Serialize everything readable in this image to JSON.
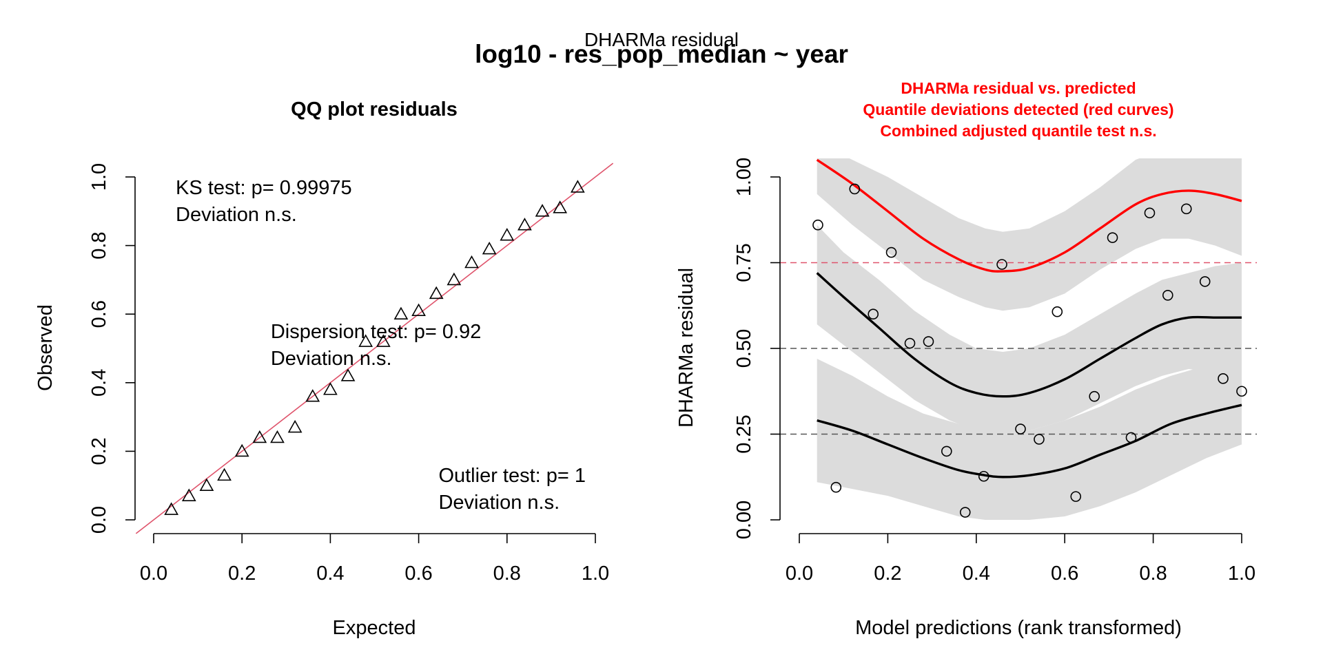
{
  "figure": {
    "supertitle_small": "DHARMa residual",
    "supertitle": "log10 - res_pop_median ~ year"
  },
  "chart_data": [
    {
      "type": "scatter",
      "title": "QQ plot residuals",
      "xlabel": "Expected",
      "ylabel": "Observed",
      "xlim": [
        0,
        1
      ],
      "ylim": [
        0,
        1
      ],
      "x_ticks": [
        "0.0",
        "0.2",
        "0.4",
        "0.6",
        "0.8",
        "1.0"
      ],
      "y_ticks": [
        "0.0",
        "0.2",
        "0.4",
        "0.6",
        "0.8",
        "1.0"
      ],
      "marker": "triangle",
      "reference_line_color": "#DF536B",
      "points": [
        {
          "x": 0.04,
          "y": 0.03
        },
        {
          "x": 0.08,
          "y": 0.07
        },
        {
          "x": 0.12,
          "y": 0.1
        },
        {
          "x": 0.16,
          "y": 0.13
        },
        {
          "x": 0.2,
          "y": 0.2
        },
        {
          "x": 0.24,
          "y": 0.24
        },
        {
          "x": 0.28,
          "y": 0.24
        },
        {
          "x": 0.32,
          "y": 0.27
        },
        {
          "x": 0.36,
          "y": 0.36
        },
        {
          "x": 0.4,
          "y": 0.38
        },
        {
          "x": 0.44,
          "y": 0.42
        },
        {
          "x": 0.48,
          "y": 0.52
        },
        {
          "x": 0.52,
          "y": 0.52
        },
        {
          "x": 0.56,
          "y": 0.6
        },
        {
          "x": 0.6,
          "y": 0.61
        },
        {
          "x": 0.64,
          "y": 0.66
        },
        {
          "x": 0.68,
          "y": 0.7
        },
        {
          "x": 0.72,
          "y": 0.75
        },
        {
          "x": 0.76,
          "y": 0.79
        },
        {
          "x": 0.8,
          "y": 0.83
        },
        {
          "x": 0.84,
          "y": 0.86
        },
        {
          "x": 0.88,
          "y": 0.9
        },
        {
          "x": 0.92,
          "y": 0.91
        },
        {
          "x": 0.96,
          "y": 0.97
        }
      ],
      "annotations": [
        {
          "lines": [
            "KS test: p= 0.99975",
            "Deviation  n.s."
          ],
          "x": 0.05,
          "y": 0.95
        },
        {
          "lines": [
            "Dispersion test: p= 0.92",
            "Deviation  n.s."
          ],
          "x": 0.265,
          "y": 0.53
        },
        {
          "lines": [
            "Outlier test: p= 1",
            "Deviation  n.s."
          ],
          "x": 0.645,
          "y": 0.11
        }
      ]
    },
    {
      "type": "scatter",
      "title_lines": [
        "DHARMa residual vs. predicted",
        "Quantile deviations detected (red curves)",
        "Combined adjusted quantile test n.s."
      ],
      "title_color": "#FF0000",
      "xlabel": "Model predictions (rank transformed)",
      "ylabel": "DHARMa residual",
      "xlim": [
        0,
        1
      ],
      "ylim": [
        0,
        1
      ],
      "x_ticks": [
        "0.0",
        "0.2",
        "0.4",
        "0.6",
        "0.8",
        "1.0"
      ],
      "y_ticks": [
        "0.00",
        "0.25",
        "0.50",
        "0.75",
        "1.00"
      ],
      "reference_lines": [
        {
          "y": 0.25,
          "color": "#555555"
        },
        {
          "y": 0.5,
          "color": "#555555"
        },
        {
          "y": 0.75,
          "color": "#DF536B"
        }
      ],
      "band_color": "#DCDCDC",
      "quantile_curves": [
        {
          "color": "#FF0000",
          "x": [
            0.04,
            0.12,
            0.2,
            0.28,
            0.36,
            0.42,
            0.46,
            0.52,
            0.6,
            0.68,
            0.76,
            0.82,
            0.88,
            0.94,
            1.0
          ],
          "y": [
            1.05,
            0.98,
            0.9,
            0.82,
            0.76,
            0.73,
            0.725,
            0.735,
            0.78,
            0.85,
            0.92,
            0.95,
            0.96,
            0.95,
            0.93
          ],
          "lower": [
            0.95,
            0.86,
            0.78,
            0.7,
            0.65,
            0.62,
            0.61,
            0.62,
            0.66,
            0.73,
            0.79,
            0.82,
            0.82,
            0.8,
            0.77
          ],
          "upper": [
            1.1,
            1.05,
            1.0,
            0.94,
            0.88,
            0.85,
            0.84,
            0.85,
            0.9,
            0.97,
            1.05,
            1.08,
            1.1,
            1.1,
            1.1
          ]
        },
        {
          "color": "#000000",
          "x": [
            0.04,
            0.1,
            0.18,
            0.26,
            0.34,
            0.4,
            0.46,
            0.52,
            0.6,
            0.68,
            0.76,
            0.82,
            0.88,
            0.94,
            1.0
          ],
          "y": [
            0.72,
            0.65,
            0.56,
            0.47,
            0.4,
            0.37,
            0.36,
            0.37,
            0.41,
            0.47,
            0.53,
            0.57,
            0.59,
            0.59,
            0.59
          ],
          "lower": [
            0.57,
            0.51,
            0.43,
            0.35,
            0.29,
            0.26,
            0.25,
            0.26,
            0.29,
            0.34,
            0.39,
            0.42,
            0.44,
            0.43,
            0.42
          ],
          "upper": [
            0.86,
            0.78,
            0.7,
            0.61,
            0.54,
            0.5,
            0.49,
            0.5,
            0.54,
            0.6,
            0.66,
            0.7,
            0.72,
            0.74,
            0.75
          ]
        },
        {
          "color": "#000000",
          "x": [
            0.04,
            0.12,
            0.2,
            0.28,
            0.36,
            0.42,
            0.46,
            0.52,
            0.6,
            0.68,
            0.76,
            0.84,
            0.92,
            1.0
          ],
          "y": [
            0.29,
            0.26,
            0.22,
            0.18,
            0.145,
            0.13,
            0.125,
            0.13,
            0.15,
            0.19,
            0.23,
            0.28,
            0.31,
            0.335
          ],
          "lower": [
            0.11,
            0.09,
            0.07,
            0.04,
            0.01,
            0.0,
            0.0,
            0.0,
            0.01,
            0.04,
            0.08,
            0.13,
            0.18,
            0.22
          ],
          "upper": [
            0.47,
            0.42,
            0.36,
            0.31,
            0.28,
            0.26,
            0.25,
            0.26,
            0.29,
            0.33,
            0.38,
            0.42,
            0.45,
            0.48
          ]
        }
      ],
      "points": [
        {
          "x": 0.042,
          "y": 0.86
        },
        {
          "x": 0.083,
          "y": 0.095
        },
        {
          "x": 0.125,
          "y": 0.965
        },
        {
          "x": 0.167,
          "y": 0.6
        },
        {
          "x": 0.208,
          "y": 0.78
        },
        {
          "x": 0.25,
          "y": 0.515
        },
        {
          "x": 0.292,
          "y": 0.52
        },
        {
          "x": 0.333,
          "y": 0.2
        },
        {
          "x": 0.375,
          "y": 0.022
        },
        {
          "x": 0.417,
          "y": 0.127
        },
        {
          "x": 0.458,
          "y": 0.745
        },
        {
          "x": 0.5,
          "y": 0.265
        },
        {
          "x": 0.542,
          "y": 0.235
        },
        {
          "x": 0.583,
          "y": 0.607
        },
        {
          "x": 0.625,
          "y": 0.068
        },
        {
          "x": 0.667,
          "y": 0.36
        },
        {
          "x": 0.708,
          "y": 0.823
        },
        {
          "x": 0.75,
          "y": 0.24
        },
        {
          "x": 0.792,
          "y": 0.895
        },
        {
          "x": 0.833,
          "y": 0.655
        },
        {
          "x": 0.875,
          "y": 0.907
        },
        {
          "x": 0.917,
          "y": 0.695
        },
        {
          "x": 0.958,
          "y": 0.412
        },
        {
          "x": 1.0,
          "y": 0.375
        }
      ]
    }
  ]
}
